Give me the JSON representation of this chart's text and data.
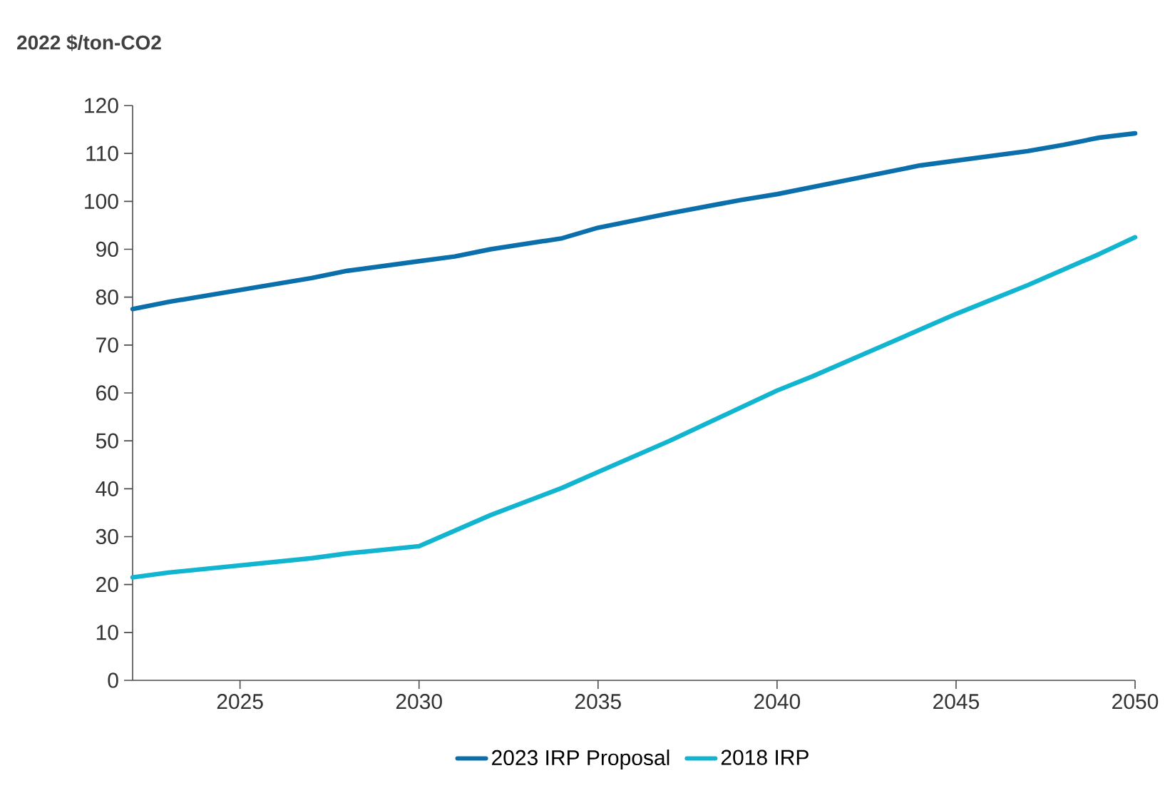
{
  "chart_data": {
    "type": "line",
    "ylabel": "2022 $/ton-CO2",
    "x": [
      2022,
      2023,
      2025,
      2027,
      2028,
      2030,
      2031,
      2032,
      2034,
      2035,
      2037,
      2039,
      2040,
      2042,
      2044,
      2045,
      2047,
      2048,
      2049,
      2050
    ],
    "series": [
      {
        "name": "2023 IRP Proposal",
        "color": "#0a6faa",
        "values": [
          77.5,
          79,
          81.5,
          84,
          85.5,
          87.5,
          88.5,
          90,
          92.3,
          94.5,
          97.5,
          100.3,
          101.5,
          104.5,
          107.5,
          108.5,
          110.5,
          111.8,
          113.3,
          114.2
        ]
      },
      {
        "name": "2018 IRP",
        "color": "#12b5cf",
        "x": [
          2022,
          2023,
          2025,
          2027,
          2028,
          2030,
          2032,
          2034,
          2035,
          2037,
          2039,
          2040,
          2041,
          2043,
          2045,
          2046,
          2047,
          2049,
          2050
        ],
        "values": [
          21.5,
          22.5,
          24,
          25.5,
          26.5,
          28,
          34.5,
          40.2,
          43.5,
          50,
          57,
          60.5,
          63.5,
          70,
          76.5,
          79.5,
          82.5,
          89,
          92.5
        ]
      }
    ],
    "xlim": [
      2022,
      2050
    ],
    "xticks": [
      2025,
      2030,
      2035,
      2040,
      2045,
      2050
    ],
    "ylim": [
      0,
      120
    ],
    "yticks": [
      0,
      10,
      20,
      30,
      40,
      50,
      60,
      70,
      80,
      90,
      100,
      110,
      120
    ],
    "grid": false,
    "legend": "bottom",
    "marker": "none",
    "line_style": "solid"
  }
}
